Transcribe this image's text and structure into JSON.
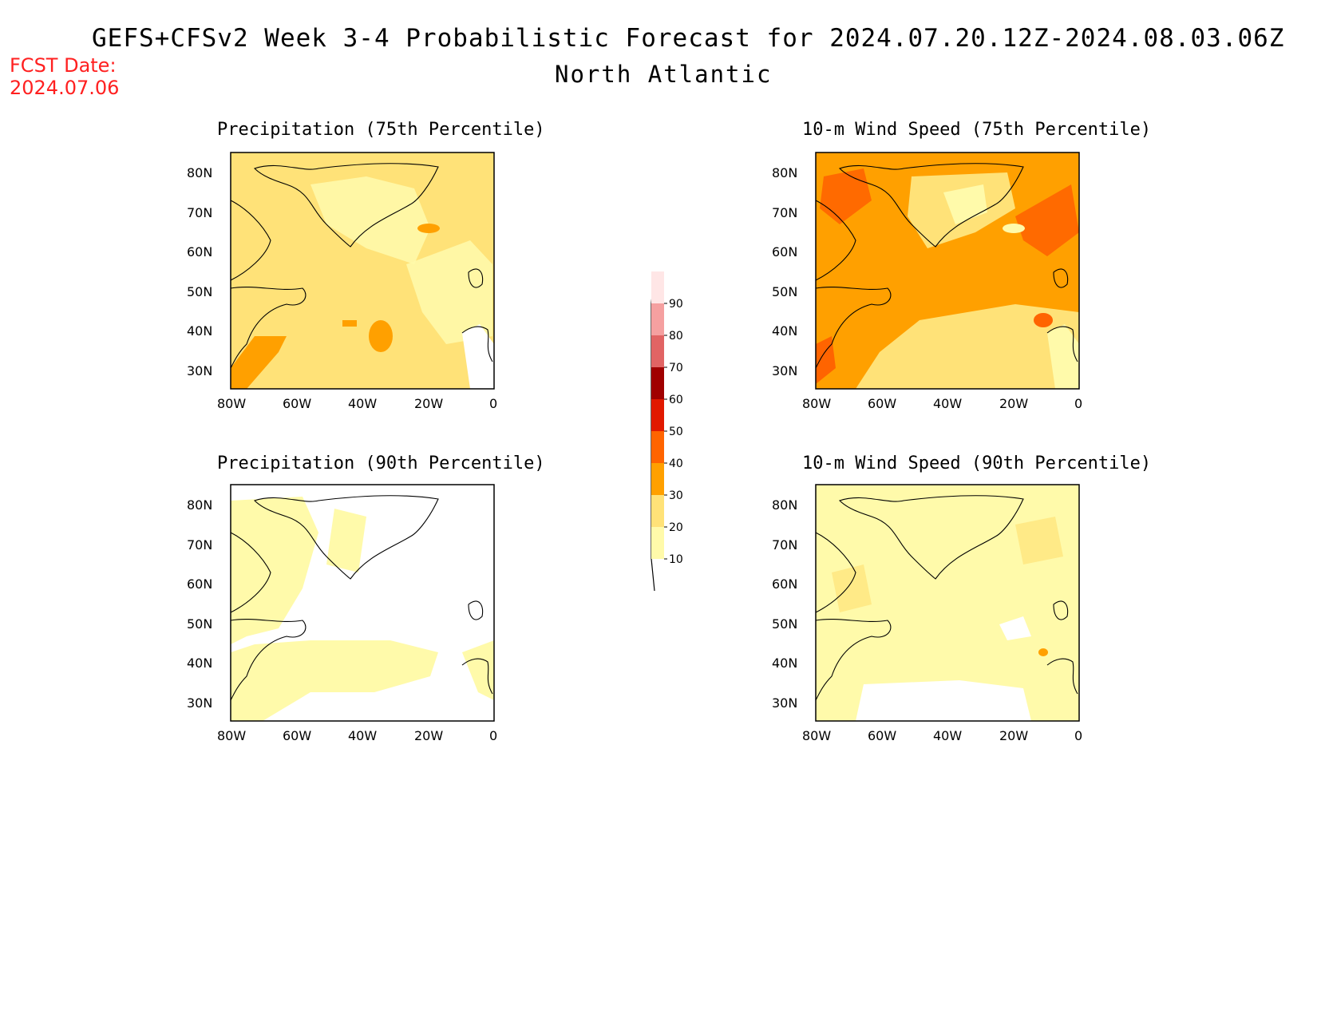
{
  "header": {
    "title": "GEFS+CFSv2 Week 3-4 Probabilistic Forecast for 2024.07.20.12Z-2024.08.03.06Z",
    "subtitle": "North Atlantic",
    "fcst_label": "FCST Date:",
    "fcst_date": "2024.07.06"
  },
  "panels": [
    {
      "title": "Precipitation (75th Percentile)"
    },
    {
      "title": "10-m Wind Speed (75th Percentile)"
    },
    {
      "title": "Precipitation (90th Percentile)"
    },
    {
      "title": "10-m Wind Speed (90th Percentile)"
    }
  ],
  "axes": {
    "lat_labels": [
      "80N",
      "70N",
      "60N",
      "50N",
      "40N",
      "30N"
    ],
    "lon_labels": [
      "80W",
      "60W",
      "40W",
      "20W",
      "0"
    ]
  },
  "colorbar": {
    "levels": [
      "10",
      "20",
      "30",
      "40",
      "50",
      "60",
      "70",
      "80",
      "90"
    ],
    "colors": [
      "#fffaaa",
      "#ffe278",
      "#ffa000",
      "#ff6400",
      "#e11900",
      "#a00000",
      "#e16464",
      "#f5a0a0",
      "#ffe6e6"
    ]
  }
}
